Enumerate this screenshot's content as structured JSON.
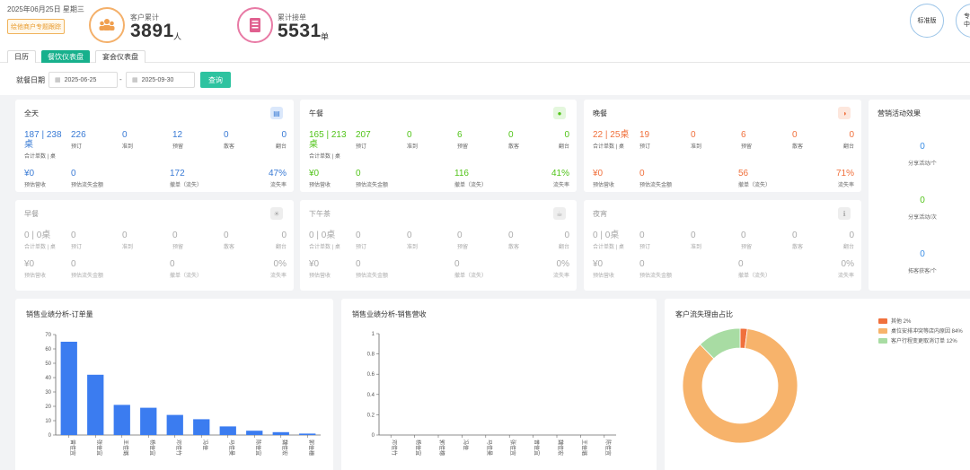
{
  "header": {
    "date": "2025年06月25日 星期三",
    "link_button": "绘他商户专题跟踪",
    "customer_total": {
      "label": "客户累计",
      "value": "3891",
      "unit": "人",
      "icon": "customers-icon"
    },
    "order_total": {
      "label": "累计接单",
      "value": "5531",
      "unit": "单",
      "icon": "order-list-icon"
    },
    "buttons": [
      "标准版",
      "专\n中"
    ]
  },
  "tabs": [
    "日历",
    "餐饮仪表盘",
    "宴会仪表盘"
  ],
  "active_tab": 1,
  "filter": {
    "label": "就餐日期",
    "start": "2025-06-25",
    "end": "2025-09-30",
    "separator": "-",
    "query": "查询"
  },
  "meals": [
    {
      "title": "全天",
      "color": "#3a7bd5",
      "icon": "chart-icon",
      "active": true,
      "row1": [
        {
          "v": "187 | 238",
          "v2": "桌",
          "l": "合计单数 | 桌"
        },
        {
          "v": "226",
          "l": "预订"
        },
        {
          "v": "0",
          "l": "准到"
        },
        {
          "v": "12",
          "l": "预留"
        },
        {
          "v": "0",
          "l": "散客"
        },
        {
          "v": "0",
          "l": "翻台"
        }
      ],
      "row2": [
        {
          "v": "¥0",
          "l": "预估营收"
        },
        {
          "v": "0",
          "l": "预估流失金额"
        },
        {
          "v": "172",
          "l": "撤单（流失）"
        },
        {
          "v": "47%",
          "l": "流失率"
        }
      ]
    },
    {
      "title": "午餐",
      "color": "#52c41a",
      "icon": "sun-icon",
      "active": true,
      "row1": [
        {
          "v": "165 | 213",
          "v2": "桌",
          "l": "合计单数 | 桌"
        },
        {
          "v": "207",
          "l": "预订"
        },
        {
          "v": "0",
          "l": "准到"
        },
        {
          "v": "6",
          "l": "预留"
        },
        {
          "v": "0",
          "l": "散客"
        },
        {
          "v": "0",
          "l": "翻台"
        }
      ],
      "row2": [
        {
          "v": "¥0",
          "l": "预估营收"
        },
        {
          "v": "0",
          "l": "预估流失金额"
        },
        {
          "v": "116",
          "l": "撤单（流失）"
        },
        {
          "v": "41%",
          "l": "流失率"
        }
      ]
    },
    {
      "title": "晚餐",
      "color": "#f0703c",
      "icon": "moon-icon",
      "active": true,
      "row1": [
        {
          "v": "22 | 25桌",
          "v2": "",
          "l": "合计单数 | 桌"
        },
        {
          "v": "19",
          "l": "预订"
        },
        {
          "v": "0",
          "l": "准到"
        },
        {
          "v": "6",
          "l": "预留"
        },
        {
          "v": "0",
          "l": "散客"
        },
        {
          "v": "0",
          "l": "翻台"
        }
      ],
      "row2": [
        {
          "v": "¥0",
          "l": "预估营收"
        },
        {
          "v": "0",
          "l": "预估流失金额"
        },
        {
          "v": "56",
          "l": "撤单（流失）"
        },
        {
          "v": "71%",
          "l": "流失率"
        }
      ]
    },
    {
      "title": "早餐",
      "color": "#aaa",
      "icon": "sunrise-icon",
      "active": false,
      "row1": [
        {
          "v": "0 | 0桌",
          "v2": "",
          "l": "合计单数 | 桌"
        },
        {
          "v": "0",
          "l": "预订"
        },
        {
          "v": "0",
          "l": "准到"
        },
        {
          "v": "0",
          "l": "预留"
        },
        {
          "v": "0",
          "l": "散客"
        },
        {
          "v": "0",
          "l": "翻台"
        }
      ],
      "row2": [
        {
          "v": "¥0",
          "l": "预估营收"
        },
        {
          "v": "0",
          "l": "预估流失金额"
        },
        {
          "v": "0",
          "l": "撤单（流失）"
        },
        {
          "v": "0%",
          "l": "流失率"
        }
      ]
    },
    {
      "title": "下午茶",
      "color": "#aaa",
      "icon": "tea-icon",
      "active": false,
      "row1": [
        {
          "v": "0 | 0桌",
          "v2": "",
          "l": "合计单数 | 桌"
        },
        {
          "v": "0",
          "l": "预订"
        },
        {
          "v": "0",
          "l": "准到"
        },
        {
          "v": "0",
          "l": "预留"
        },
        {
          "v": "0",
          "l": "散客"
        },
        {
          "v": "0",
          "l": "翻台"
        }
      ],
      "row2": [
        {
          "v": "¥0",
          "l": "预估营收"
        },
        {
          "v": "0",
          "l": "预估流失金额"
        },
        {
          "v": "0",
          "l": "撤单（流失）"
        },
        {
          "v": "0%",
          "l": "流失率"
        }
      ]
    },
    {
      "title": "夜宵",
      "color": "#aaa",
      "icon": "night-icon",
      "active": false,
      "row1": [
        {
          "v": "0 | 0桌",
          "v2": "",
          "l": "合计单数 | 桌"
        },
        {
          "v": "0",
          "l": "预订"
        },
        {
          "v": "0",
          "l": "准到"
        },
        {
          "v": "0",
          "l": "预留"
        },
        {
          "v": "0",
          "l": "散客"
        },
        {
          "v": "0",
          "l": "翻台"
        }
      ],
      "row2": [
        {
          "v": "¥0",
          "l": "预估营收"
        },
        {
          "v": "0",
          "l": "预估流失金额"
        },
        {
          "v": "0",
          "l": "撤单（流失）"
        },
        {
          "v": "0%",
          "l": "流失率"
        }
      ]
    }
  ],
  "marketing": {
    "title": "营销活动效果",
    "items": [
      {
        "v": "0",
        "l": "分享活动/个",
        "color": "#3a8ee6"
      },
      {
        "v": "0",
        "l": "分享活动/次",
        "color": "#52c41a"
      },
      {
        "v": "0",
        "l": "拓客获客/个",
        "color": "#3a8ee6"
      }
    ]
  },
  "chart_data": [
    {
      "type": "bar",
      "title": "销售业绩分析-订单量",
      "categories": [
        "曾佳宜",
        "张佳宜",
        "王佳璐",
        "杨佳宜",
        "邓佳竹",
        "冯佳",
        "马佳曼",
        "陈佳宜",
        "魏佳宏",
        "郭佳穗"
      ],
      "values": [
        65,
        42,
        21,
        19,
        14,
        11,
        6,
        3,
        2,
        1
      ],
      "ylim": [
        0,
        70
      ],
      "yticks": [
        0,
        10,
        20,
        30,
        40,
        50,
        60,
        70
      ],
      "color": "#3b7cf0"
    },
    {
      "type": "bar",
      "title": "销售业绩分析-销售营收",
      "categories": [
        "邓佳竹",
        "杨佳宜",
        "郭佳穗",
        "冯佳",
        "马佳曼",
        "张佳宜",
        "曾佳宜",
        "魏佳宏",
        "王佳璐",
        "陈佳宜"
      ],
      "values": [
        0,
        0,
        0,
        0,
        0,
        0,
        0,
        0,
        0,
        0
      ],
      "ylim": [
        0,
        1
      ],
      "yticks": [
        0,
        0.2,
        0.4,
        0.6,
        0.8,
        1
      ],
      "color": "#3b7cf0"
    },
    {
      "type": "pie",
      "title": "客户流失理由占比",
      "series": [
        {
          "name": "其他 2%",
          "value": 2,
          "color": "#f0703c"
        },
        {
          "name": "桌位安排冲突等店内原因 84%",
          "value": 84,
          "color": "#f7b36b"
        },
        {
          "name": "客户行程变更取消订单 12%",
          "value": 12,
          "color": "#a8dca3"
        }
      ]
    }
  ]
}
